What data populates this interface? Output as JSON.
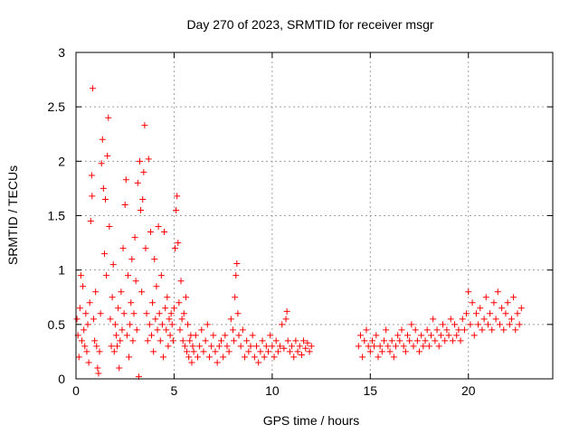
{
  "chart_data": {
    "type": "scatter",
    "title": "Day 270 of 2023, SRMTID for receiver msgr",
    "xlabel": "GPS time / hours",
    "ylabel": "SRMTID / TECUs",
    "xlim": [
      0,
      24.3
    ],
    "ylim": [
      0,
      3
    ],
    "xticks": [
      0,
      5,
      10,
      15,
      20
    ],
    "xtick_labels": [
      "0",
      "5",
      "10",
      "15",
      "20"
    ],
    "yticks": [
      0,
      0.5,
      1,
      1.5,
      2,
      2.5,
      3
    ],
    "ytick_labels": [
      "0",
      "0.5",
      "1",
      "1.5",
      "2",
      "2.5",
      "3"
    ],
    "grid": true,
    "marker": "+",
    "color": "#ff0000",
    "series": [
      {
        "name": "SRMTID",
        "points": [
          [
            0.05,
            0.55
          ],
          [
            0.1,
            0.4
          ],
          [
            0.15,
            0.2
          ],
          [
            0.2,
            0.65
          ],
          [
            0.25,
            0.95
          ],
          [
            0.3,
            0.35
          ],
          [
            0.35,
            0.85
          ],
          [
            0.4,
            0.45
          ],
          [
            0.45,
            0.3
          ],
          [
            0.5,
            0.6
          ],
          [
            0.55,
            0.25
          ],
          [
            0.6,
            0.5
          ],
          [
            0.65,
            0.15
          ],
          [
            0.7,
            0.7
          ],
          [
            0.75,
            1.45
          ],
          [
            0.8,
            1.87
          ],
          [
            0.82,
            1.68
          ],
          [
            0.85,
            2.67
          ],
          [
            0.9,
            0.55
          ],
          [
            0.95,
            0.35
          ],
          [
            1.0,
            0.8
          ],
          [
            1.05,
            0.3
          ],
          [
            1.1,
            0.1
          ],
          [
            1.15,
            0.05
          ],
          [
            1.2,
            0.25
          ],
          [
            1.25,
            0.6
          ],
          [
            1.3,
            1.98
          ],
          [
            1.35,
            2.2
          ],
          [
            1.4,
            1.75
          ],
          [
            1.45,
            1.15
          ],
          [
            1.5,
            1.65
          ],
          [
            1.55,
            0.95
          ],
          [
            1.6,
            2.05
          ],
          [
            1.65,
            2.4
          ],
          [
            1.7,
            1.4
          ],
          [
            1.75,
            0.55
          ],
          [
            1.8,
            0.3
          ],
          [
            1.85,
            0.75
          ],
          [
            1.9,
            1.05
          ],
          [
            1.95,
            0.25
          ],
          [
            2.0,
            0.5
          ],
          [
            2.05,
            0.4
          ],
          [
            2.1,
            0.3
          ],
          [
            2.15,
            0.65
          ],
          [
            2.2,
            0.1
          ],
          [
            2.25,
            0.35
          ],
          [
            2.3,
            0.8
          ],
          [
            2.35,
            0.45
          ],
          [
            2.4,
            1.2
          ],
          [
            2.45,
            0.6
          ],
          [
            2.5,
            1.6
          ],
          [
            2.55,
            1.83
          ],
          [
            2.6,
            0.4
          ],
          [
            2.65,
            0.95
          ],
          [
            2.7,
            0.2
          ],
          [
            2.75,
            0.5
          ],
          [
            2.8,
            0.7
          ],
          [
            2.85,
            1.1
          ],
          [
            2.9,
            0.35
          ],
          [
            2.95,
            0.6
          ],
          [
            3.0,
            1.3
          ],
          [
            3.05,
            0.9
          ],
          [
            3.1,
            0.45
          ],
          [
            3.15,
            1.8
          ],
          [
            3.2,
            0.02
          ],
          [
            3.25,
            2.0
          ],
          [
            3.3,
            1.55
          ],
          [
            3.35,
            0.8
          ],
          [
            3.4,
            1.65
          ],
          [
            3.45,
            1.9
          ],
          [
            3.5,
            2.33
          ],
          [
            3.55,
            1.2
          ],
          [
            3.6,
            0.6
          ],
          [
            3.65,
            0.35
          ],
          [
            3.7,
            2.02
          ],
          [
            3.75,
            0.5
          ],
          [
            3.8,
            1.35
          ],
          [
            3.85,
            0.4
          ],
          [
            3.9,
            0.7
          ],
          [
            3.95,
            0.25
          ],
          [
            4.0,
            1.1
          ],
          [
            4.05,
            0.55
          ],
          [
            4.1,
            0.85
          ],
          [
            4.15,
            0.45
          ],
          [
            4.2,
            1.4
          ],
          [
            4.25,
            0.6
          ],
          [
            4.3,
            0.35
          ],
          [
            4.35,
            0.95
          ],
          [
            4.4,
            0.5
          ],
          [
            4.45,
            0.2
          ],
          [
            4.5,
            1.35
          ],
          [
            4.55,
            0.65
          ],
          [
            4.6,
            0.45
          ],
          [
            4.65,
            0.75
          ],
          [
            4.7,
            0.3
          ],
          [
            4.75,
            0.55
          ],
          [
            4.8,
            0.4
          ],
          [
            4.85,
            0.6
          ],
          [
            4.9,
            0.5
          ],
          [
            4.95,
            0.35
          ],
          [
            5.0,
            0.65
          ],
          [
            5.05,
            1.2
          ],
          [
            5.1,
            1.55
          ],
          [
            5.15,
            1.68
          ],
          [
            5.2,
            1.25
          ],
          [
            5.25,
            0.7
          ],
          [
            5.3,
            0.45
          ],
          [
            5.35,
            0.9
          ],
          [
            5.4,
            0.55
          ],
          [
            5.45,
            0.35
          ],
          [
            5.5,
            0.6
          ],
          [
            5.55,
            0.3
          ],
          [
            5.6,
            0.75
          ],
          [
            5.65,
            0.25
          ],
          [
            5.7,
            0.5
          ],
          [
            5.75,
            0.2
          ],
          [
            5.8,
            0.35
          ],
          [
            5.85,
            0.4
          ],
          [
            5.9,
            0.15
          ],
          [
            5.95,
            0.3
          ],
          [
            6.0,
            0.25
          ],
          [
            6.1,
            0.4
          ],
          [
            6.2,
            0.2
          ],
          [
            6.3,
            0.3
          ],
          [
            6.4,
            0.45
          ],
          [
            6.5,
            0.25
          ],
          [
            6.6,
            0.35
          ],
          [
            6.7,
            0.5
          ],
          [
            6.8,
            0.2
          ],
          [
            6.9,
            0.3
          ],
          [
            7.0,
            0.4
          ],
          [
            7.1,
            0.25
          ],
          [
            7.2,
            0.15
          ],
          [
            7.3,
            0.3
          ],
          [
            7.4,
            0.35
          ],
          [
            7.5,
            0.2
          ],
          [
            7.6,
            0.4
          ],
          [
            7.7,
            0.3
          ],
          [
            7.8,
            0.25
          ],
          [
            7.9,
            0.55
          ],
          [
            8.0,
            0.45
          ],
          [
            8.05,
            0.35
          ],
          [
            8.1,
            0.75
          ],
          [
            8.15,
            0.95
          ],
          [
            8.2,
            1.06
          ],
          [
            8.25,
            0.6
          ],
          [
            8.3,
            0.4
          ],
          [
            8.4,
            0.3
          ],
          [
            8.5,
            0.45
          ],
          [
            8.6,
            0.2
          ],
          [
            8.7,
            0.35
          ],
          [
            8.8,
            0.25
          ],
          [
            8.9,
            0.3
          ],
          [
            9.0,
            0.4
          ],
          [
            9.1,
            0.2
          ],
          [
            9.2,
            0.3
          ],
          [
            9.3,
            0.15
          ],
          [
            9.4,
            0.25
          ],
          [
            9.5,
            0.35
          ],
          [
            9.6,
            0.2
          ],
          [
            9.7,
            0.3
          ],
          [
            9.8,
            0.25
          ],
          [
            9.9,
            0.4
          ],
          [
            10.0,
            0.3
          ],
          [
            10.1,
            0.2
          ],
          [
            10.2,
            0.35
          ],
          [
            10.3,
            0.25
          ],
          [
            10.4,
            0.3
          ],
          [
            10.5,
            0.5
          ],
          [
            10.6,
            0.28
          ],
          [
            10.7,
            0.55
          ],
          [
            10.75,
            0.62
          ],
          [
            10.8,
            0.35
          ],
          [
            10.9,
            0.25
          ],
          [
            11.0,
            0.3
          ],
          [
            11.1,
            0.2
          ],
          [
            11.2,
            0.35
          ],
          [
            11.3,
            0.25
          ],
          [
            11.4,
            0.3
          ],
          [
            11.5,
            0.22
          ],
          [
            11.6,
            0.35
          ],
          [
            11.7,
            0.28
          ],
          [
            11.8,
            0.33
          ],
          [
            11.9,
            0.25
          ],
          [
            12.0,
            0.3
          ],
          [
            14.4,
            0.3
          ],
          [
            14.5,
            0.4
          ],
          [
            14.6,
            0.2
          ],
          [
            14.7,
            0.35
          ],
          [
            14.8,
            0.45
          ],
          [
            14.9,
            0.3
          ],
          [
            15.0,
            0.25
          ],
          [
            15.1,
            0.35
          ],
          [
            15.2,
            0.3
          ],
          [
            15.3,
            0.4
          ],
          [
            15.4,
            0.2
          ],
          [
            15.5,
            0.3
          ],
          [
            15.6,
            0.25
          ],
          [
            15.7,
            0.35
          ],
          [
            15.8,
            0.45
          ],
          [
            15.9,
            0.3
          ],
          [
            16.0,
            0.25
          ],
          [
            16.1,
            0.35
          ],
          [
            16.2,
            0.2
          ],
          [
            16.3,
            0.3
          ],
          [
            16.4,
            0.4
          ],
          [
            16.5,
            0.35
          ],
          [
            16.6,
            0.45
          ],
          [
            16.7,
            0.3
          ],
          [
            16.8,
            0.25
          ],
          [
            16.9,
            0.4
          ],
          [
            17.0,
            0.35
          ],
          [
            17.1,
            0.5
          ],
          [
            17.2,
            0.3
          ],
          [
            17.3,
            0.45
          ],
          [
            17.4,
            0.35
          ],
          [
            17.5,
            0.25
          ],
          [
            17.6,
            0.4
          ],
          [
            17.7,
            0.3
          ],
          [
            17.8,
            0.35
          ],
          [
            17.9,
            0.45
          ],
          [
            18.0,
            0.3
          ],
          [
            18.1,
            0.4
          ],
          [
            18.2,
            0.55
          ],
          [
            18.3,
            0.35
          ],
          [
            18.4,
            0.45
          ],
          [
            18.5,
            0.3
          ],
          [
            18.6,
            0.4
          ],
          [
            18.7,
            0.5
          ],
          [
            18.8,
            0.35
          ],
          [
            18.9,
            0.45
          ],
          [
            19.0,
            0.4
          ],
          [
            19.1,
            0.55
          ],
          [
            19.2,
            0.35
          ],
          [
            19.3,
            0.5
          ],
          [
            19.4,
            0.4
          ],
          [
            19.5,
            0.45
          ],
          [
            19.6,
            0.35
          ],
          [
            19.7,
            0.55
          ],
          [
            19.8,
            0.45
          ],
          [
            19.9,
            0.6
          ],
          [
            20.0,
            0.8
          ],
          [
            20.1,
            0.5
          ],
          [
            20.2,
            0.7
          ],
          [
            20.3,
            0.4
          ],
          [
            20.4,
            0.6
          ],
          [
            20.5,
            0.5
          ],
          [
            20.6,
            0.65
          ],
          [
            20.7,
            0.45
          ],
          [
            20.8,
            0.55
          ],
          [
            20.9,
            0.75
          ],
          [
            21.0,
            0.5
          ],
          [
            21.1,
            0.6
          ],
          [
            21.2,
            0.45
          ],
          [
            21.3,
            0.7
          ],
          [
            21.4,
            0.55
          ],
          [
            21.5,
            0.8
          ],
          [
            21.6,
            0.5
          ],
          [
            21.7,
            0.65
          ],
          [
            21.8,
            0.45
          ],
          [
            21.9,
            0.6
          ],
          [
            22.0,
            0.7
          ],
          [
            22.1,
            0.5
          ],
          [
            22.2,
            0.55
          ],
          [
            22.3,
            0.75
          ],
          [
            22.4,
            0.45
          ],
          [
            22.5,
            0.6
          ],
          [
            22.6,
            0.5
          ],
          [
            22.7,
            0.65
          ]
        ]
      }
    ]
  }
}
